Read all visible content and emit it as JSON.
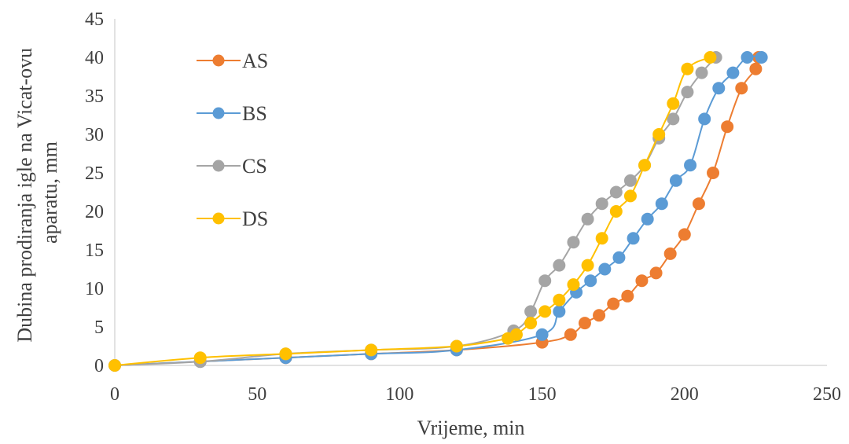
{
  "chart_data": {
    "type": "line",
    "title": "",
    "xlabel": "Vrijeme, min",
    "ylabel_lines": [
      "Dubina prodiranja igle na Vicat-ovu",
      "aparatu, mm"
    ],
    "xlim": [
      0,
      250
    ],
    "ylim": [
      0,
      45
    ],
    "x_ticks": [
      0,
      50,
      100,
      150,
      200,
      250
    ],
    "y_ticks": [
      0,
      5,
      10,
      15,
      20,
      25,
      30,
      35,
      40,
      45
    ],
    "grid": false,
    "legend_position": "upper-left inside plot",
    "series": [
      {
        "name": "AS",
        "color": "#ED7D31",
        "x": [
          0,
          30,
          60,
          90,
          120,
          150,
          160,
          165,
          170,
          175,
          180,
          185,
          190,
          195,
          200,
          205,
          210,
          215,
          220,
          225,
          226
        ],
        "y": [
          0,
          0.5,
          1,
          1.5,
          2,
          3,
          4,
          5.5,
          6.5,
          8,
          9,
          11,
          12,
          14.5,
          17,
          21,
          25,
          31,
          36,
          38.5,
          40
        ]
      },
      {
        "name": "BS",
        "color": "#5B9BD5",
        "x": [
          0,
          30,
          60,
          90,
          120,
          150,
          156,
          162,
          167,
          172,
          177,
          182,
          187,
          192,
          197,
          202,
          207,
          212,
          217,
          222,
          227
        ],
        "y": [
          0,
          0.5,
          1,
          1.5,
          2,
          4,
          7,
          9.5,
          11,
          12.5,
          14,
          16.5,
          19,
          21,
          24,
          26,
          32,
          36,
          38,
          40,
          40
        ]
      },
      {
        "name": "CS",
        "color": "#A5A5A5",
        "x": [
          0,
          30,
          60,
          90,
          120,
          140,
          146,
          151,
          156,
          161,
          166,
          171,
          176,
          181,
          186,
          191,
          196,
          201,
          206,
          211
        ],
        "y": [
          0,
          0.5,
          1.5,
          2,
          2.5,
          4.5,
          7,
          11,
          13,
          16,
          19,
          21,
          22.5,
          24,
          26,
          29.5,
          32,
          35.5,
          38,
          40
        ]
      },
      {
        "name": "DS",
        "color": "#FFC000",
        "x": [
          0,
          30,
          60,
          90,
          120,
          138,
          141,
          146,
          151,
          156,
          161,
          166,
          171,
          176,
          181,
          186,
          191,
          196,
          201,
          209
        ],
        "y": [
          0,
          1,
          1.5,
          2,
          2.5,
          3.5,
          4,
          5.5,
          7,
          8.5,
          10.5,
          13,
          16.5,
          20,
          22,
          26,
          30,
          34,
          38.5,
          40
        ]
      }
    ]
  }
}
